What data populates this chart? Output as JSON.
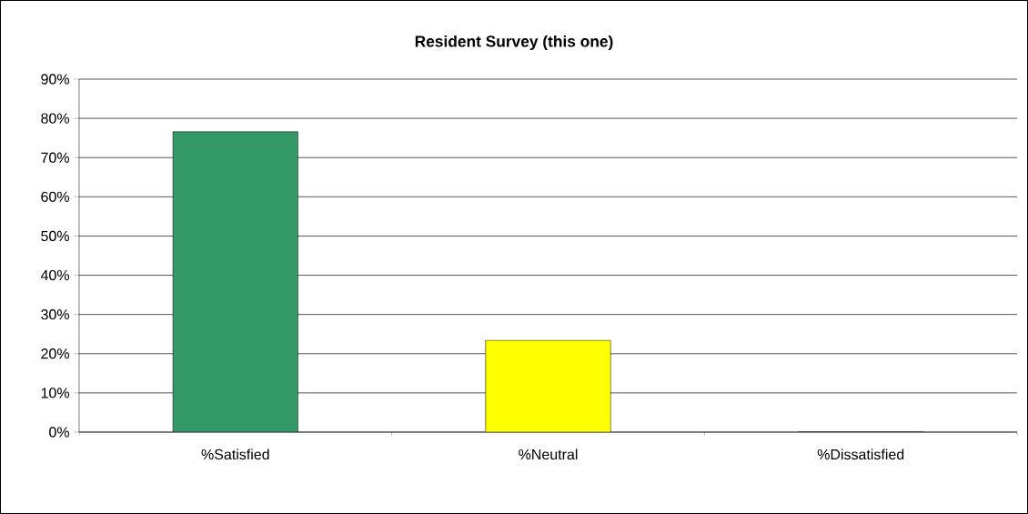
{
  "chart_data": {
    "type": "bar",
    "title": "Resident Survey (this one)",
    "categories": [
      "%Satisfied",
      "%Neutral",
      "%Dissatisfied"
    ],
    "values": [
      76.6,
      23.4,
      0
    ],
    "colors": [
      "#339966",
      "#ffff00",
      "#808080"
    ],
    "ylim": [
      0,
      90
    ],
    "yticks": [
      {
        "value": 0,
        "label": "0%"
      },
      {
        "value": 10,
        "label": "10%"
      },
      {
        "value": 20,
        "label": "20%"
      },
      {
        "value": 30,
        "label": "30%"
      },
      {
        "value": 40,
        "label": "40%"
      },
      {
        "value": 50,
        "label": "50%"
      },
      {
        "value": 60,
        "label": "60%"
      },
      {
        "value": 70,
        "label": "70%"
      },
      {
        "value": 80,
        "label": "80%"
      },
      {
        "value": 90,
        "label": "90%"
      }
    ],
    "grid": "y"
  }
}
